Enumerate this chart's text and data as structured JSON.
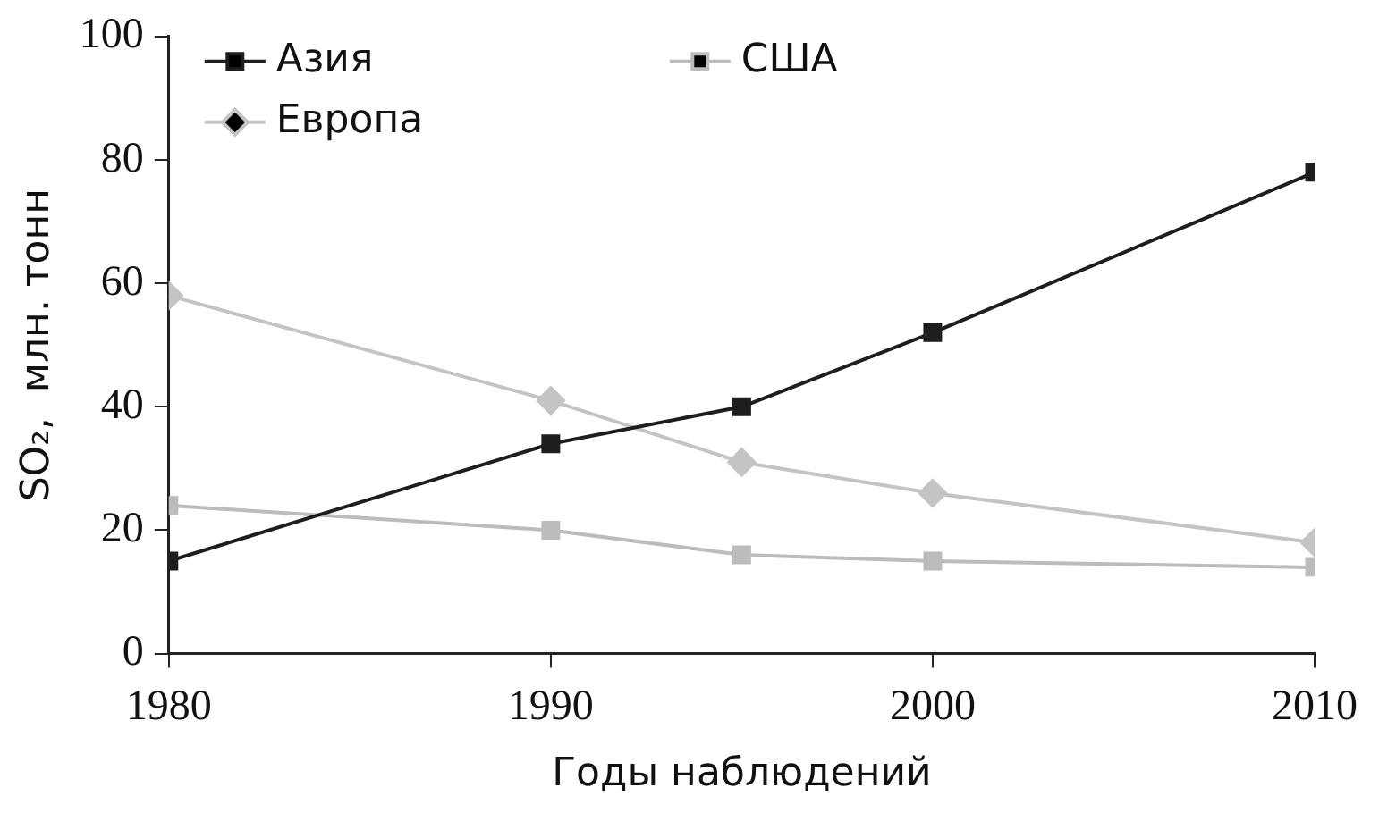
{
  "chart_data": {
    "type": "line",
    "xlabel": "Годы наблюдений",
    "ylabel": "SO₂,  млн. тонн",
    "x": [
      1980,
      1990,
      1995,
      2000,
      2010
    ],
    "series": [
      {
        "name": "Азия",
        "color": "#1e1e1e",
        "marker": "square",
        "values": [
          15,
          34,
          40,
          52,
          78
        ]
      },
      {
        "name": "Европа",
        "color": "#c4c4c4",
        "marker": "diamond",
        "values": [
          58,
          41,
          31,
          26,
          18
        ]
      },
      {
        "name": "США",
        "color": "#bcbcbc",
        "marker": "square",
        "values": [
          24,
          20,
          16,
          15,
          14
        ]
      }
    ],
    "xlim": [
      1980,
      2010
    ],
    "xticks": [
      1980,
      1990,
      2000,
      2010
    ],
    "ylim": [
      0,
      100
    ],
    "yticks": [
      0,
      20,
      40,
      60,
      80,
      100
    ],
    "grid": false,
    "legend": "top left",
    "line_style": "solid"
  }
}
